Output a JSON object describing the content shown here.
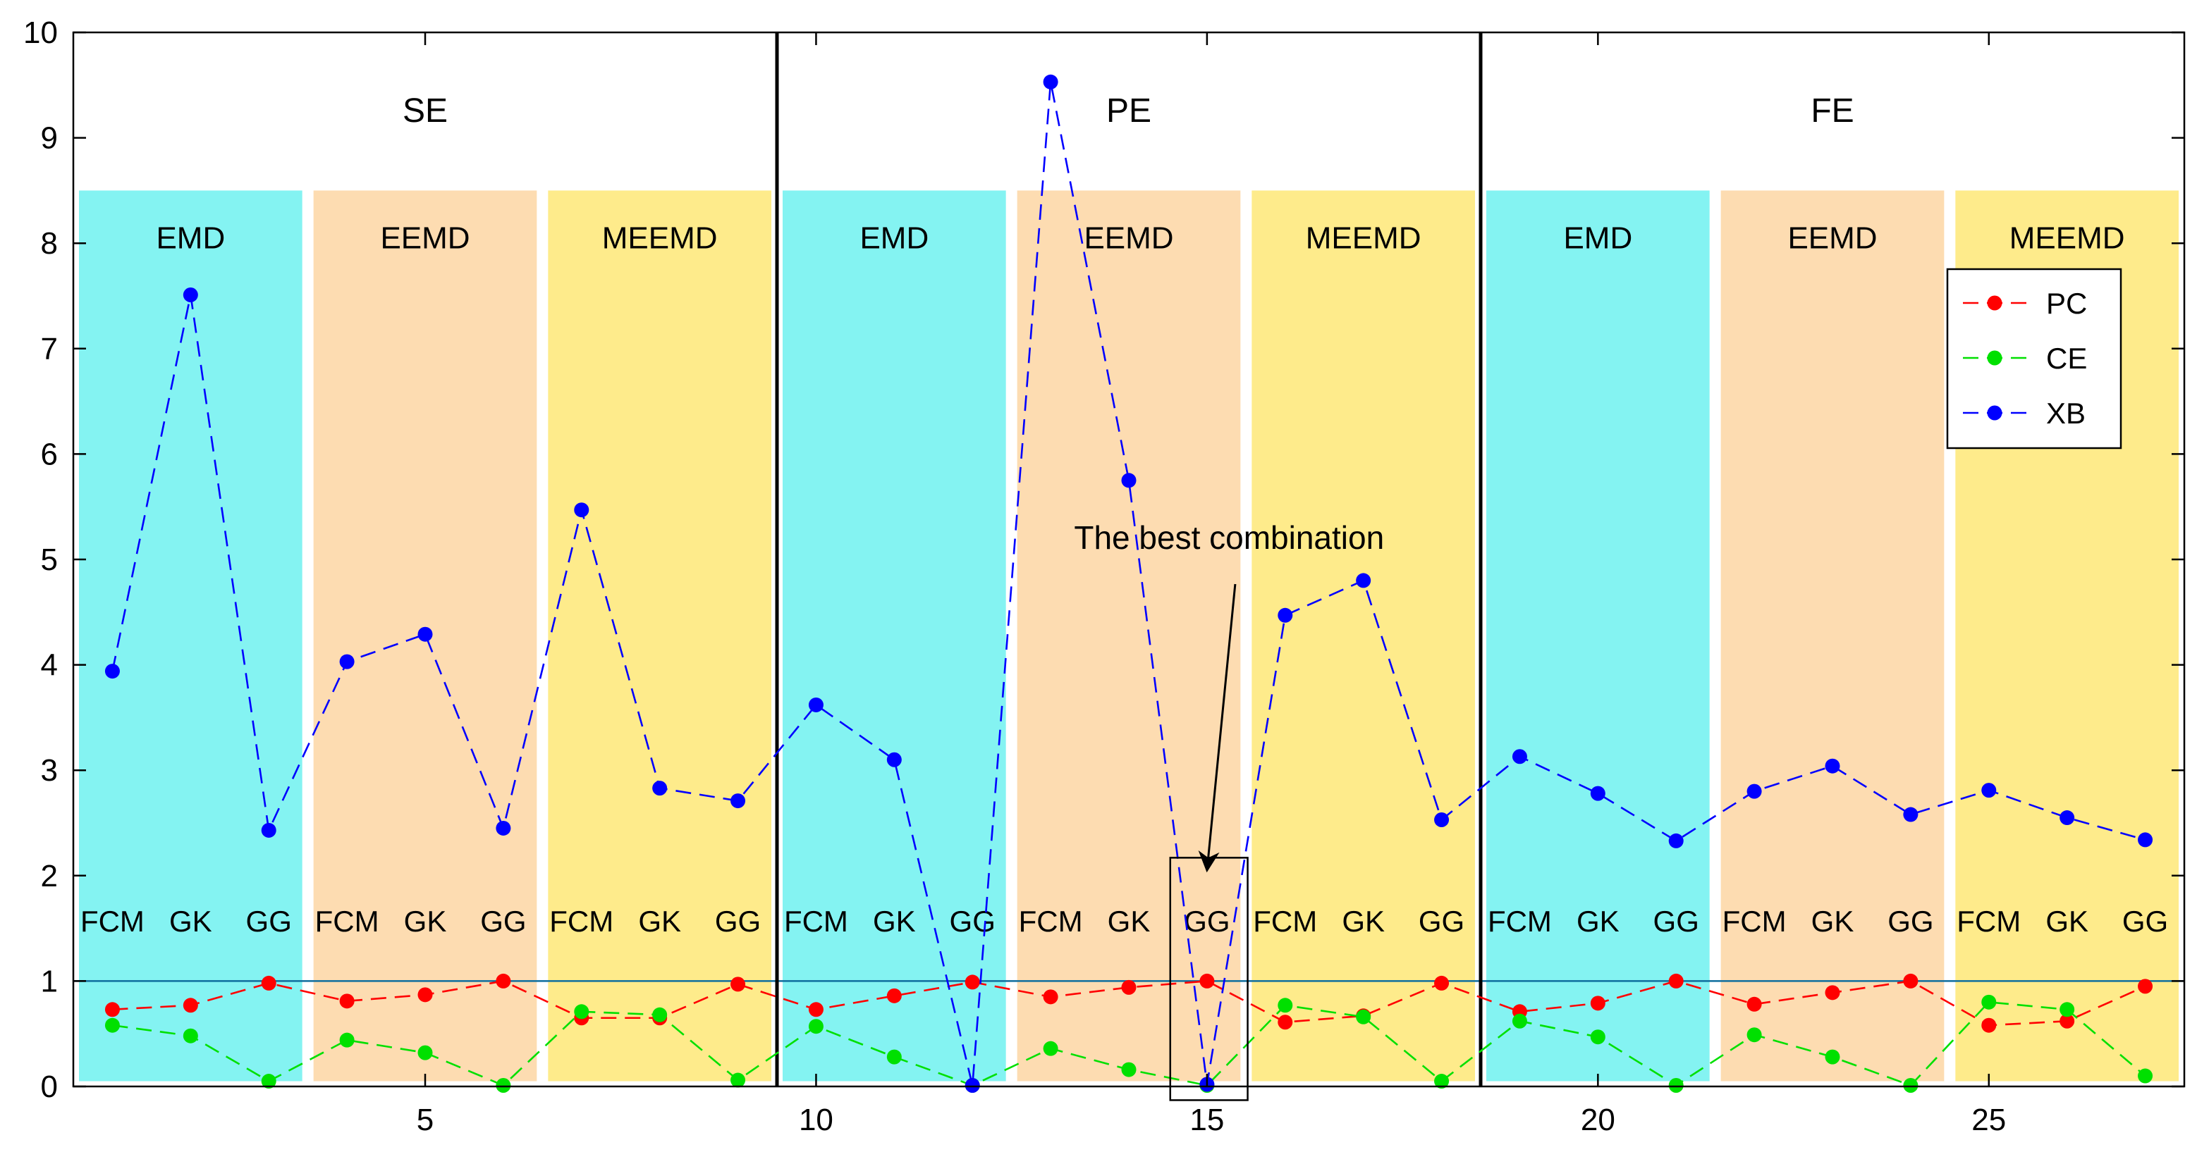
{
  "chart_data": {
    "type": "line",
    "title": "",
    "xlabel": "",
    "ylabel": "",
    "xlim": [
      0.5,
      27.5
    ],
    "ylim": [
      0,
      10
    ],
    "x_ticks": [
      5,
      10,
      15,
      20,
      25
    ],
    "y_ticks": [
      0,
      1,
      2,
      3,
      4,
      5,
      6,
      7,
      8,
      9,
      10
    ],
    "reference_line": 1,
    "legend_position": "top-right",
    "x": [
      1,
      2,
      3,
      4,
      5,
      6,
      7,
      8,
      9,
      10,
      11,
      12,
      13,
      14,
      15,
      16,
      17,
      18,
      19,
      20,
      21,
      22,
      23,
      24,
      25,
      26,
      27
    ],
    "series": [
      {
        "name": "PC",
        "color": "#ff0000",
        "values": [
          0.73,
          0.77,
          0.98,
          0.81,
          0.87,
          1.0,
          0.65,
          0.65,
          0.97,
          0.73,
          0.86,
          0.99,
          0.85,
          0.94,
          1.0,
          0.61,
          0.67,
          0.98,
          0.71,
          0.79,
          1.0,
          0.78,
          0.89,
          1.0,
          0.58,
          0.62,
          0.95
        ]
      },
      {
        "name": "CE",
        "color": "#00e000",
        "values": [
          0.58,
          0.48,
          0.05,
          0.44,
          0.32,
          0.01,
          0.71,
          0.68,
          0.06,
          0.57,
          0.28,
          0.01,
          0.36,
          0.16,
          0.01,
          0.77,
          0.66,
          0.05,
          0.62,
          0.47,
          0.01,
          0.49,
          0.28,
          0.01,
          0.8,
          0.73,
          0.1
        ]
      },
      {
        "name": "XB",
        "color": "#0000ff",
        "values": [
          3.94,
          7.51,
          2.43,
          4.03,
          4.29,
          2.45,
          5.47,
          2.83,
          2.71,
          3.62,
          3.1,
          0.01,
          9.53,
          5.75,
          0.02,
          4.47,
          4.8,
          2.53,
          3.13,
          2.78,
          2.33,
          2.8,
          3.04,
          2.58,
          2.81,
          2.55,
          2.34
        ]
      }
    ],
    "groups": [
      {
        "label": "SE",
        "from": 1,
        "to": 9
      },
      {
        "label": "PE",
        "from": 10,
        "to": 18
      },
      {
        "label": "FE",
        "from": 19,
        "to": 27
      }
    ],
    "divider_lines_at": [
      9.5,
      18.5
    ],
    "methods": [
      {
        "label": "EMD",
        "from": 1,
        "to": 3,
        "color": "#84f3f2"
      },
      {
        "label": "EEMD",
        "from": 4,
        "to": 6,
        "color": "#fddcb1"
      },
      {
        "label": "MEEMD",
        "from": 7,
        "to": 9,
        "color": "#feeb8b"
      },
      {
        "label": "EMD",
        "from": 10,
        "to": 12,
        "color": "#84f3f2"
      },
      {
        "label": "EEMD",
        "from": 13,
        "to": 15,
        "color": "#fddcb1"
      },
      {
        "label": "MEEMD",
        "from": 16,
        "to": 18,
        "color": "#feeb8b"
      },
      {
        "label": "EMD",
        "from": 19,
        "to": 21,
        "color": "#84f3f2"
      },
      {
        "label": "EEMD",
        "from": 22,
        "to": 24,
        "color": "#fddcb1"
      },
      {
        "label": "MEEMD",
        "from": 25,
        "to": 27,
        "color": "#feeb8b"
      }
    ],
    "band_top": 8.5,
    "algorithm_labels": [
      "FCM",
      "GK",
      "GG",
      "FCM",
      "GK",
      "GG",
      "FCM",
      "GK",
      "GG",
      "FCM",
      "GK",
      "GG",
      "FCM",
      "GK",
      "GG",
      "FCM",
      "GK",
      "GG",
      "FCM",
      "GK",
      "GG",
      "FCM",
      "GK",
      "GG",
      "FCM",
      "GK",
      "GG"
    ],
    "algorithm_label_y": 1.47,
    "group_label_y": 9.15,
    "method_label_y": 7.95,
    "annotation": {
      "text": "The best combination",
      "target_x": 15,
      "target_y": 2.05,
      "text_x": 13.3,
      "text_y": 5.1,
      "box_x": [
        14.53,
        15.52
      ],
      "box_y": [
        -0.13,
        2.17
      ]
    }
  }
}
